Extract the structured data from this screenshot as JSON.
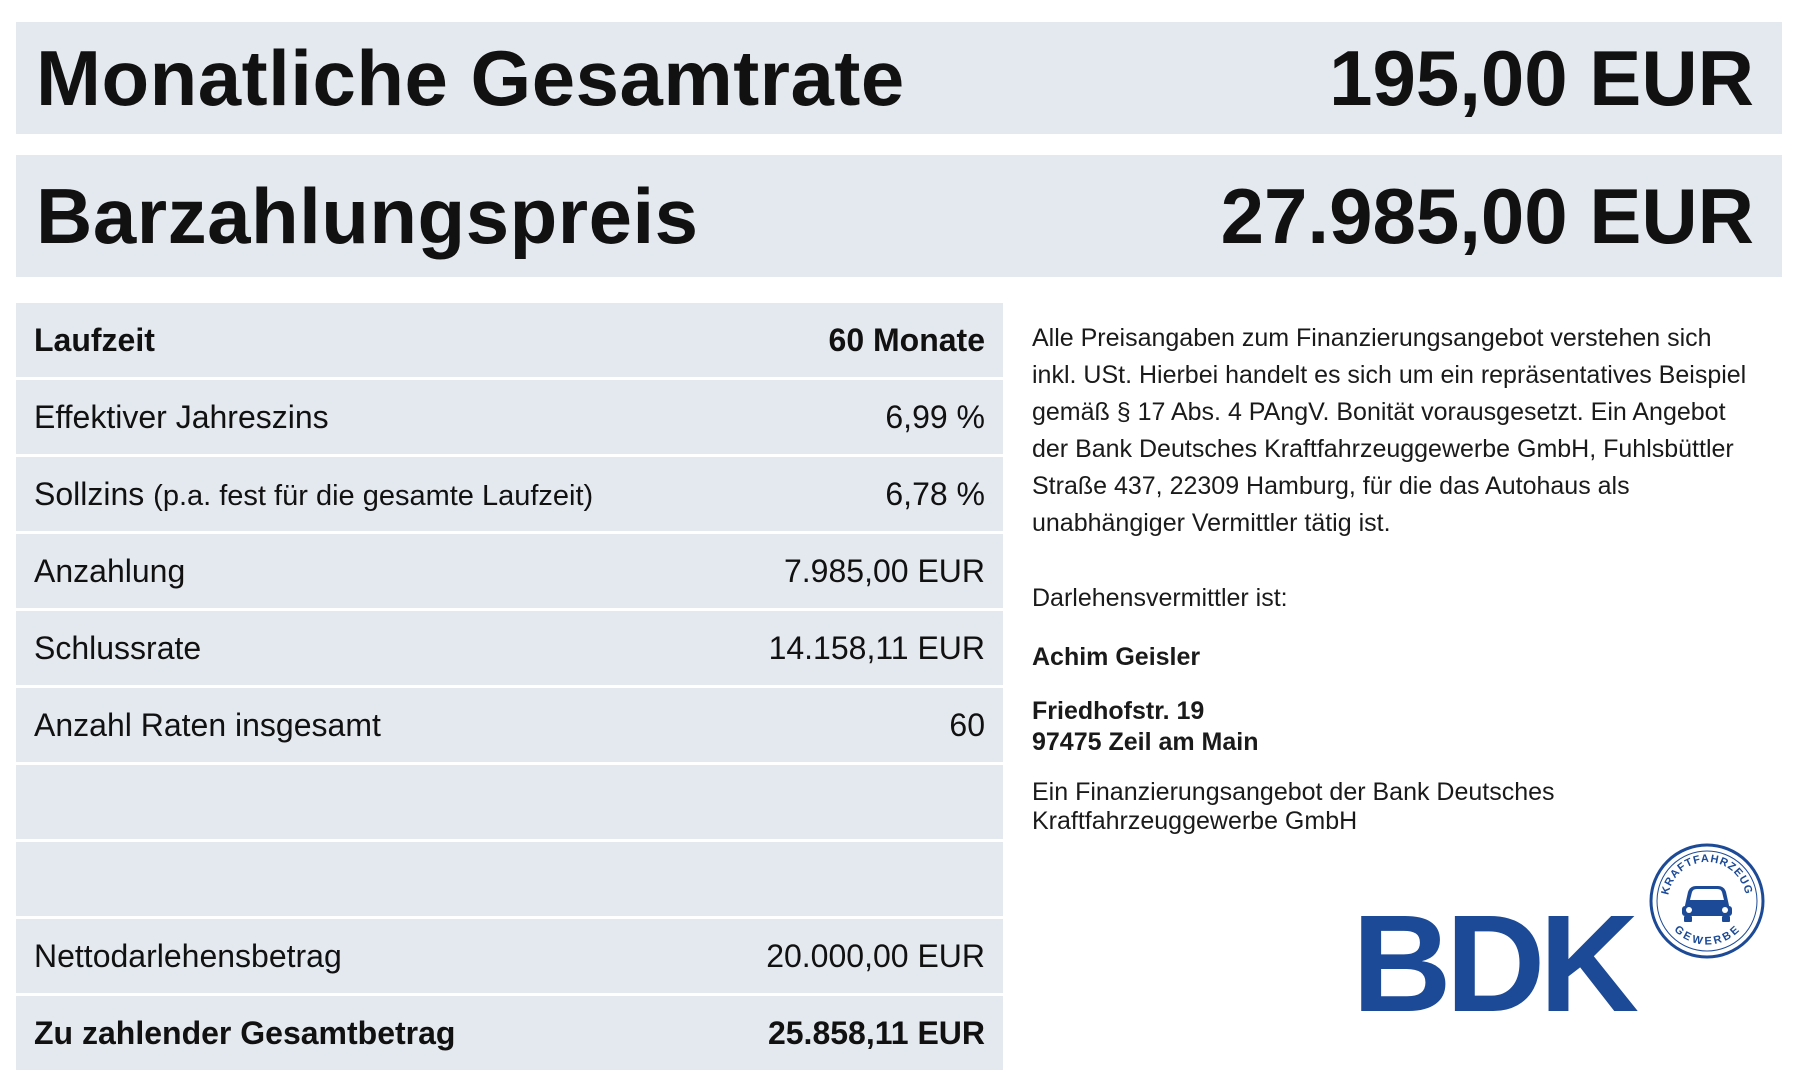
{
  "banner": {
    "rate_label": "Monatliche  Gesamtrate",
    "rate_value": "195,00 EUR",
    "price_label": "Barzahlungspreis",
    "price_value": "27.985,00 EUR"
  },
  "table": {
    "rows": [
      {
        "label": "Laufzeit",
        "value": "60 Monate"
      },
      {
        "label": "Effektiver  Jahreszins",
        "value": "6,99 %"
      },
      {
        "label": "Sollzins",
        "label_note": "(p.a. fest für die gesamte  Laufzeit)",
        "value": "6,78 %"
      },
      {
        "label": "Anzahlung",
        "value": "7.985,00 EUR"
      },
      {
        "label": "Schlussrate",
        "value": "14.158,11 EUR"
      },
      {
        "label": "Anzahl  Raten  insgesamt",
        "value": "60"
      },
      {
        "label": "",
        "value": ""
      },
      {
        "label": "",
        "value": ""
      },
      {
        "label": "Nettodarlehensbetrag",
        "value": "20.000,00 EUR"
      },
      {
        "label": "Zu zahlender  Gesamtbetrag",
        "value": "25.858,11 EUR"
      }
    ]
  },
  "info": {
    "disclaimer": "Alle Preisangaben  zum Finanzierungsangebot  verstehen sich inkl. USt. Hierbei handelt es sich um ein repräsentatives Beispiel gemäß § 17 Abs. 4 PAngV. Bonität vorausgesetzt. Ein Angebot der Bank Deutsches Kraftfahrzeuggewerbe GmbH, Fuhlsbüttler Straße 437, 22309 Hamburg, für die das Autohaus als unabhängiger Vermittler tätig ist.",
    "broker_label": "Darlehensvermittler  ist:",
    "broker_name": "Achim Geisler",
    "street": "Friedhofstr. 19",
    "city": "97475 Zeil am Main",
    "footer": "Ein Finanzierungsangebot der Bank Deutsches Kraftfahrzeuggewerbe GmbH"
  },
  "logo": {
    "text": "BDK",
    "seal_top": "KRAFTFAHRZEUG",
    "seal_bottom": "GEWERBE",
    "color": "#1c4a96"
  }
}
